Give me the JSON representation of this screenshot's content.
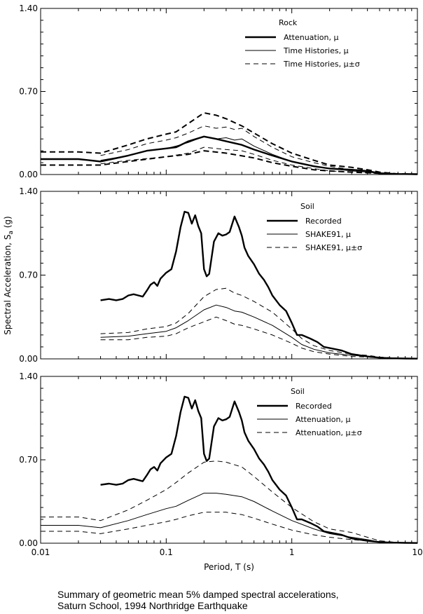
{
  "caption": {
    "line1": "Summary of geometric mean 5% damped spectral accelerations,",
    "line2": "Saturn School, 1994 Northridge Earthquake"
  },
  "axes": {
    "ylabel_main": "Spectral Acceleration, S",
    "ylabel_sub": "a",
    "ylabel_unit": " (g)",
    "xlabel": "Period, T (s)",
    "x_scale": "log",
    "xlim": [
      0.01,
      10
    ],
    "ylim": [
      0,
      1.4
    ],
    "xticks": [
      0.01,
      0.1,
      1,
      10
    ],
    "xtick_labels": [
      "0.01",
      "0.1",
      "1",
      "10"
    ],
    "yticks": [
      0,
      0.7,
      1.4
    ],
    "ytick_labels": [
      "0.00",
      "0.70",
      "1.40"
    ]
  },
  "chart_data": [
    {
      "type": "line",
      "legend_title": "Rock",
      "legend_position": "top-right",
      "series": [
        {
          "name": "Attenuation, μ",
          "style": "thick-solid",
          "x": [
            0.01,
            0.02,
            0.03,
            0.05,
            0.07,
            0.1,
            0.12,
            0.15,
            0.2,
            0.25,
            0.3,
            0.4,
            0.5,
            0.7,
            1,
            1.5,
            2,
            3,
            4,
            5,
            7,
            10
          ],
          "y": [
            0.13,
            0.13,
            0.11,
            0.16,
            0.2,
            0.22,
            0.23,
            0.28,
            0.32,
            0.3,
            0.28,
            0.25,
            0.21,
            0.16,
            0.11,
            0.07,
            0.05,
            0.04,
            0.03,
            0.01,
            0.005,
            0.003
          ]
        },
        {
          "name": "Attenuation, μ−σ",
          "style": "thick-dashed",
          "x": [
            0.01,
            0.02,
            0.03,
            0.05,
            0.1,
            0.15,
            0.2,
            0.3,
            0.5,
            0.7,
            1,
            1.5,
            2,
            3,
            4,
            5,
            7,
            10
          ],
          "y": [
            0.08,
            0.08,
            0.08,
            0.11,
            0.15,
            0.17,
            0.2,
            0.18,
            0.14,
            0.1,
            0.07,
            0.04,
            0.03,
            0.02,
            0.015,
            0.01,
            0.005,
            0.002
          ]
        },
        {
          "name": "Attenuation, μ+σ",
          "style": "thick-dashed",
          "x": [
            0.01,
            0.02,
            0.03,
            0.05,
            0.07,
            0.1,
            0.12,
            0.15,
            0.2,
            0.25,
            0.3,
            0.4,
            0.5,
            0.7,
            1,
            1.5,
            2,
            3,
            4,
            5,
            7,
            10
          ],
          "y": [
            0.19,
            0.19,
            0.18,
            0.25,
            0.3,
            0.34,
            0.36,
            0.43,
            0.52,
            0.5,
            0.47,
            0.41,
            0.35,
            0.26,
            0.18,
            0.12,
            0.08,
            0.06,
            0.04,
            0.02,
            0.005,
            0.003
          ]
        },
        {
          "name": "Time Histories, μ",
          "style": "thin-solid",
          "x": [
            0.03,
            0.05,
            0.07,
            0.1,
            0.12,
            0.15,
            0.2,
            0.25,
            0.3,
            0.35,
            0.4,
            0.5,
            0.7,
            1,
            1.5,
            2,
            3,
            4,
            5,
            7,
            10
          ],
          "y": [
            0.12,
            0.16,
            0.2,
            0.22,
            0.24,
            0.27,
            0.32,
            0.3,
            0.31,
            0.29,
            0.3,
            0.24,
            0.17,
            0.11,
            0.07,
            0.05,
            0.03,
            0.02,
            0.01,
            0.005,
            0.003
          ]
        },
        {
          "name": "Time Histories, μ−σ",
          "style": "thin-dashed",
          "x": [
            0.03,
            0.05,
            0.1,
            0.15,
            0.2,
            0.25,
            0.3,
            0.4,
            0.5,
            0.7,
            1,
            1.5,
            2,
            3,
            5,
            7,
            10
          ],
          "y": [
            0.09,
            0.12,
            0.15,
            0.18,
            0.23,
            0.22,
            0.21,
            0.2,
            0.17,
            0.12,
            0.08,
            0.05,
            0.03,
            0.02,
            0.008,
            0.004,
            0.002
          ]
        },
        {
          "name": "Time Histories, μ+σ",
          "style": "thin-dashed",
          "x": [
            0.03,
            0.05,
            0.07,
            0.1,
            0.12,
            0.15,
            0.2,
            0.25,
            0.3,
            0.35,
            0.4,
            0.5,
            0.7,
            1,
            1.5,
            2,
            3,
            4,
            5,
            7,
            10
          ],
          "y": [
            0.16,
            0.21,
            0.26,
            0.29,
            0.31,
            0.35,
            0.41,
            0.39,
            0.4,
            0.38,
            0.39,
            0.32,
            0.23,
            0.15,
            0.1,
            0.07,
            0.04,
            0.03,
            0.015,
            0.006,
            0.003
          ]
        }
      ],
      "legend": [
        {
          "label": "Attenuation, μ",
          "style": "thick-solid"
        },
        {
          "label": "Time Histories, μ",
          "style": "thin-solid"
        },
        {
          "label": "Time Histories, μ±σ",
          "style": "thin-dashed"
        }
      ]
    },
    {
      "type": "line",
      "legend_title": "Soil",
      "legend_position": "top-right",
      "series": [
        {
          "name": "Recorded",
          "style": "thick-solid",
          "x": [
            0.03,
            0.035,
            0.04,
            0.045,
            0.05,
            0.055,
            0.06,
            0.065,
            0.07,
            0.075,
            0.08,
            0.085,
            0.09,
            0.1,
            0.11,
            0.12,
            0.13,
            0.14,
            0.15,
            0.16,
            0.17,
            0.18,
            0.19,
            0.2,
            0.21,
            0.22,
            0.24,
            0.26,
            0.28,
            0.3,
            0.32,
            0.35,
            0.38,
            0.4,
            0.42,
            0.45,
            0.5,
            0.55,
            0.6,
            0.65,
            0.7,
            0.8,
            0.9,
            1.0,
            1.1,
            1.2,
            1.4,
            1.6,
            1.8,
            2.0,
            2.5,
            3,
            4,
            5,
            6,
            8,
            10
          ],
          "y": [
            0.49,
            0.5,
            0.49,
            0.5,
            0.53,
            0.54,
            0.53,
            0.52,
            0.57,
            0.62,
            0.64,
            0.61,
            0.67,
            0.72,
            0.75,
            0.9,
            1.1,
            1.23,
            1.22,
            1.13,
            1.2,
            1.11,
            1.05,
            0.75,
            0.69,
            0.71,
            0.98,
            1.05,
            1.03,
            1.04,
            1.06,
            1.19,
            1.1,
            1.03,
            0.93,
            0.86,
            0.79,
            0.71,
            0.66,
            0.6,
            0.53,
            0.45,
            0.4,
            0.3,
            0.2,
            0.2,
            0.17,
            0.14,
            0.1,
            0.09,
            0.07,
            0.04,
            0.02,
            0.01,
            0.005,
            0.003,
            0.002
          ]
        },
        {
          "name": "SHAKE91, μ",
          "style": "thin-solid",
          "x": [
            0.03,
            0.05,
            0.07,
            0.1,
            0.12,
            0.15,
            0.2,
            0.25,
            0.3,
            0.35,
            0.4,
            0.5,
            0.7,
            1,
            1.2,
            1.5,
            2,
            3,
            4,
            5,
            7,
            10
          ],
          "y": [
            0.18,
            0.19,
            0.21,
            0.23,
            0.26,
            0.32,
            0.41,
            0.45,
            0.43,
            0.4,
            0.39,
            0.35,
            0.28,
            0.18,
            0.12,
            0.08,
            0.05,
            0.03,
            0.02,
            0.01,
            0.005,
            0.003
          ]
        },
        {
          "name": "SHAKE91, μ−σ",
          "style": "thin-dashed",
          "x": [
            0.03,
            0.05,
            0.07,
            0.1,
            0.12,
            0.15,
            0.2,
            0.25,
            0.3,
            0.35,
            0.4,
            0.5,
            0.7,
            1,
            1.2,
            1.5,
            2,
            3,
            4,
            5,
            7,
            10
          ],
          "y": [
            0.16,
            0.16,
            0.18,
            0.19,
            0.21,
            0.26,
            0.31,
            0.35,
            0.32,
            0.29,
            0.28,
            0.25,
            0.2,
            0.13,
            0.09,
            0.06,
            0.04,
            0.02,
            0.015,
            0.008,
            0.004,
            0.002
          ]
        },
        {
          "name": "SHAKE91, μ+σ",
          "style": "thin-dashed",
          "x": [
            0.03,
            0.05,
            0.07,
            0.1,
            0.12,
            0.15,
            0.2,
            0.25,
            0.3,
            0.35,
            0.4,
            0.5,
            0.7,
            1,
            1.2,
            1.5,
            2,
            3,
            4,
            5,
            7,
            10
          ],
          "y": [
            0.21,
            0.22,
            0.25,
            0.27,
            0.3,
            0.38,
            0.52,
            0.58,
            0.59,
            0.55,
            0.53,
            0.48,
            0.39,
            0.25,
            0.17,
            0.11,
            0.07,
            0.04,
            0.03,
            0.015,
            0.006,
            0.003
          ]
        }
      ],
      "legend": [
        {
          "label": "Recorded",
          "style": "thick-solid"
        },
        {
          "label": "SHAKE91, μ",
          "style": "thin-solid"
        },
        {
          "label": "SHAKE91, μ±σ",
          "style": "thin-dashed"
        }
      ]
    },
    {
      "type": "line",
      "legend_title": "Soil",
      "legend_position": "top-right",
      "series": [
        {
          "name": "Recorded",
          "style": "thick-solid",
          "x": [
            0.03,
            0.035,
            0.04,
            0.045,
            0.05,
            0.055,
            0.06,
            0.065,
            0.07,
            0.075,
            0.08,
            0.085,
            0.09,
            0.1,
            0.11,
            0.12,
            0.13,
            0.14,
            0.15,
            0.16,
            0.17,
            0.18,
            0.19,
            0.2,
            0.21,
            0.22,
            0.24,
            0.26,
            0.28,
            0.3,
            0.32,
            0.35,
            0.38,
            0.4,
            0.42,
            0.45,
            0.5,
            0.55,
            0.6,
            0.65,
            0.7,
            0.8,
            0.9,
            1.0,
            1.1,
            1.2,
            1.4,
            1.6,
            1.8,
            2.0,
            2.5,
            3,
            4,
            5,
            6,
            8,
            10
          ],
          "y": [
            0.49,
            0.5,
            0.49,
            0.5,
            0.53,
            0.54,
            0.53,
            0.52,
            0.57,
            0.62,
            0.64,
            0.61,
            0.67,
            0.72,
            0.75,
            0.9,
            1.1,
            1.23,
            1.22,
            1.13,
            1.2,
            1.11,
            1.05,
            0.75,
            0.69,
            0.71,
            0.98,
            1.05,
            1.03,
            1.04,
            1.06,
            1.19,
            1.1,
            1.03,
            0.93,
            0.86,
            0.79,
            0.71,
            0.66,
            0.6,
            0.53,
            0.45,
            0.4,
            0.3,
            0.2,
            0.2,
            0.17,
            0.14,
            0.1,
            0.09,
            0.07,
            0.04,
            0.02,
            0.01,
            0.005,
            0.003,
            0.002
          ]
        },
        {
          "name": "Attenuation, μ",
          "style": "thin-solid",
          "x": [
            0.01,
            0.02,
            0.03,
            0.05,
            0.07,
            0.1,
            0.12,
            0.15,
            0.2,
            0.25,
            0.3,
            0.4,
            0.5,
            0.7,
            1,
            1.5,
            2,
            3,
            4,
            5,
            7,
            10
          ],
          "y": [
            0.15,
            0.15,
            0.13,
            0.19,
            0.24,
            0.29,
            0.31,
            0.36,
            0.42,
            0.42,
            0.41,
            0.39,
            0.35,
            0.27,
            0.19,
            0.12,
            0.08,
            0.05,
            0.03,
            0.01,
            0.005,
            0.003
          ]
        },
        {
          "name": "Attenuation, μ−σ",
          "style": "thin-dashed",
          "x": [
            0.01,
            0.02,
            0.03,
            0.05,
            0.07,
            0.1,
            0.12,
            0.15,
            0.2,
            0.25,
            0.3,
            0.4,
            0.5,
            0.7,
            1,
            1.5,
            2,
            3,
            4,
            5,
            7,
            10
          ],
          "y": [
            0.1,
            0.1,
            0.08,
            0.12,
            0.15,
            0.18,
            0.2,
            0.23,
            0.26,
            0.26,
            0.26,
            0.24,
            0.21,
            0.16,
            0.11,
            0.07,
            0.05,
            0.03,
            0.02,
            0.008,
            0.004,
            0.002
          ]
        },
        {
          "name": "Attenuation, μ+σ",
          "style": "thin-dashed",
          "x": [
            0.01,
            0.02,
            0.03,
            0.05,
            0.07,
            0.1,
            0.12,
            0.15,
            0.2,
            0.25,
            0.3,
            0.4,
            0.5,
            0.7,
            1,
            1.5,
            2,
            3,
            4,
            5,
            7,
            10
          ],
          "y": [
            0.22,
            0.22,
            0.19,
            0.28,
            0.36,
            0.45,
            0.51,
            0.59,
            0.68,
            0.69,
            0.68,
            0.64,
            0.56,
            0.43,
            0.3,
            0.18,
            0.12,
            0.09,
            0.05,
            0.02,
            0.006,
            0.003
          ]
        }
      ],
      "legend": [
        {
          "label": "Recorded",
          "style": "thick-solid"
        },
        {
          "label": "Attenuation, μ",
          "style": "thin-solid"
        },
        {
          "label": "Attenuation, μ±σ",
          "style": "thin-dashed"
        }
      ]
    }
  ]
}
